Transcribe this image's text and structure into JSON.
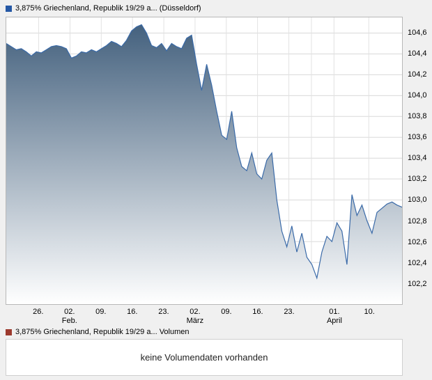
{
  "page": {
    "background": "#f0f0f0"
  },
  "price_legend": {
    "marker_color": "#2558a5",
    "label": "3,875% Griechenland, Republik 19/29 a... (Düsseldorf)"
  },
  "volume_legend": {
    "marker_color": "#9c3a2e",
    "label": "3,875% Griechenland, Republik 19/29 a... Volumen"
  },
  "volume_panel": {
    "message": "keine Volumendaten vorhanden"
  },
  "chart_data": {
    "type": "area",
    "title": "3,875% Griechenland, Republik 19/29 a... (Düsseldorf)",
    "ylabel": "",
    "xlabel": "",
    "ylim": [
      102.0,
      104.75
    ],
    "grid": true,
    "legend_position": "top-left",
    "line_color": "#3a6aa8",
    "fill_top": "#44617e",
    "fill_bottom": "#ffffff",
    "yticks": [
      {
        "value": 104.6,
        "label": "104,6"
      },
      {
        "value": 104.4,
        "label": "104,4"
      },
      {
        "value": 104.2,
        "label": "104,2"
      },
      {
        "value": 104.0,
        "label": "104,0"
      },
      {
        "value": 103.8,
        "label": "103,8"
      },
      {
        "value": 103.6,
        "label": "103,6"
      },
      {
        "value": 103.4,
        "label": "103,4"
      },
      {
        "value": 103.2,
        "label": "103,2"
      },
      {
        "value": 103.0,
        "label": "103,0"
      },
      {
        "value": 102.8,
        "label": "102,8"
      },
      {
        "value": 102.6,
        "label": "102,6"
      },
      {
        "value": 102.4,
        "label": "102,4"
      },
      {
        "value": 102.2,
        "label": "102,2"
      }
    ],
    "xticks": [
      {
        "pos": 0.082,
        "label": "26."
      },
      {
        "pos": 0.161,
        "label": "02."
      },
      {
        "pos": 0.24,
        "label": "09."
      },
      {
        "pos": 0.319,
        "label": "16."
      },
      {
        "pos": 0.398,
        "label": "23."
      },
      {
        "pos": 0.477,
        "label": "02."
      },
      {
        "pos": 0.556,
        "label": "09."
      },
      {
        "pos": 0.635,
        "label": "16."
      },
      {
        "pos": 0.714,
        "label": "23."
      },
      {
        "pos": 0.828,
        "label": "01."
      },
      {
        "pos": 0.916,
        "label": "10."
      }
    ],
    "months": [
      {
        "pos": 0.161,
        "label": "Feb."
      },
      {
        "pos": 0.477,
        "label": "März"
      },
      {
        "pos": 0.828,
        "label": "April"
      }
    ],
    "grid_x": [
      0.082,
      0.161,
      0.24,
      0.319,
      0.398,
      0.477,
      0.556,
      0.635,
      0.714,
      0.771,
      0.828,
      0.916
    ],
    "values": [
      104.5,
      104.47,
      104.44,
      104.45,
      104.42,
      104.38,
      104.42,
      104.41,
      104.44,
      104.47,
      104.48,
      104.47,
      104.45,
      104.36,
      104.38,
      104.42,
      104.41,
      104.44,
      104.42,
      104.45,
      104.48,
      104.52,
      104.5,
      104.47,
      104.53,
      104.62,
      104.66,
      104.68,
      104.6,
      104.48,
      104.46,
      104.5,
      104.43,
      104.5,
      104.47,
      104.45,
      104.55,
      104.58,
      104.3,
      104.05,
      104.3,
      104.1,
      103.85,
      103.62,
      103.58,
      103.85,
      103.5,
      103.32,
      103.28,
      103.45,
      103.25,
      103.2,
      103.38,
      103.45,
      103.0,
      102.7,
      102.55,
      102.75,
      102.5,
      102.68,
      102.45,
      102.38,
      102.25,
      102.5,
      102.65,
      102.6,
      102.78,
      102.7,
      102.38,
      103.05,
      102.85,
      102.95,
      102.8,
      102.68,
      102.88,
      102.92,
      102.96,
      102.98,
      102.95,
      102.93
    ]
  }
}
